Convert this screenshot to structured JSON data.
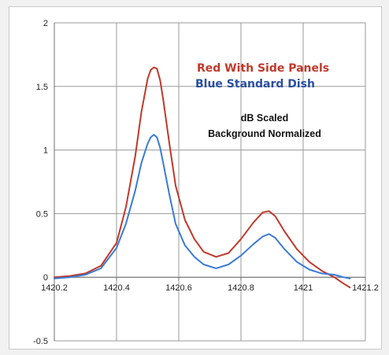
{
  "chart_data": {
    "type": "line",
    "title": "",
    "xlabel": "",
    "ylabel": "",
    "xlim": [
      1420.2,
      1421.2
    ],
    "ylim": [
      -0.5,
      2
    ],
    "x_ticks": [
      "1420.2",
      "1420.4",
      "1420.6",
      "1420.8",
      "1421",
      "1421.2"
    ],
    "y_ticks": [
      "-0.5",
      "0",
      "0.5",
      "1",
      "1.5",
      "2"
    ],
    "grid": true,
    "legend_lines": [
      "Red With Side Panels",
      "Blue Standard  Dish"
    ],
    "annotations": [
      "dB Scaled",
      "Background Normalized"
    ],
    "series": [
      {
        "name": "Red With Side Panels",
        "color": "#c0392b",
        "x": [
          1420.2,
          1420.25,
          1420.3,
          1420.35,
          1420.4,
          1420.43,
          1420.46,
          1420.48,
          1420.5,
          1420.51,
          1420.52,
          1420.53,
          1420.54,
          1420.55,
          1420.57,
          1420.59,
          1420.62,
          1420.65,
          1420.68,
          1420.72,
          1420.76,
          1420.8,
          1420.84,
          1420.87,
          1420.89,
          1420.91,
          1420.94,
          1420.98,
          1421.02,
          1421.06,
          1421.1,
          1421.13,
          1421.15
        ],
        "y": [
          0.0,
          0.01,
          0.03,
          0.09,
          0.27,
          0.55,
          0.95,
          1.3,
          1.56,
          1.63,
          1.65,
          1.64,
          1.55,
          1.4,
          1.05,
          0.72,
          0.45,
          0.3,
          0.2,
          0.16,
          0.19,
          0.3,
          0.43,
          0.51,
          0.52,
          0.48,
          0.36,
          0.22,
          0.12,
          0.05,
          0.0,
          -0.05,
          -0.08
        ]
      },
      {
        "name": "Blue Standard  Dish",
        "color": "#3a7bd5",
        "x": [
          1420.2,
          1420.25,
          1420.3,
          1420.35,
          1420.4,
          1420.43,
          1420.46,
          1420.48,
          1420.5,
          1420.51,
          1420.52,
          1420.53,
          1420.54,
          1420.55,
          1420.57,
          1420.59,
          1420.62,
          1420.65,
          1420.68,
          1420.72,
          1420.76,
          1420.8,
          1420.84,
          1420.87,
          1420.89,
          1420.91,
          1420.94,
          1420.98,
          1421.02,
          1421.06,
          1421.1,
          1421.13,
          1421.15
        ],
        "y": [
          -0.01,
          0.0,
          0.02,
          0.07,
          0.23,
          0.42,
          0.68,
          0.9,
          1.05,
          1.1,
          1.12,
          1.1,
          1.02,
          0.9,
          0.65,
          0.42,
          0.25,
          0.16,
          0.1,
          0.07,
          0.1,
          0.17,
          0.26,
          0.32,
          0.34,
          0.31,
          0.22,
          0.12,
          0.06,
          0.03,
          0.02,
          0.0,
          -0.01
        ]
      }
    ]
  }
}
